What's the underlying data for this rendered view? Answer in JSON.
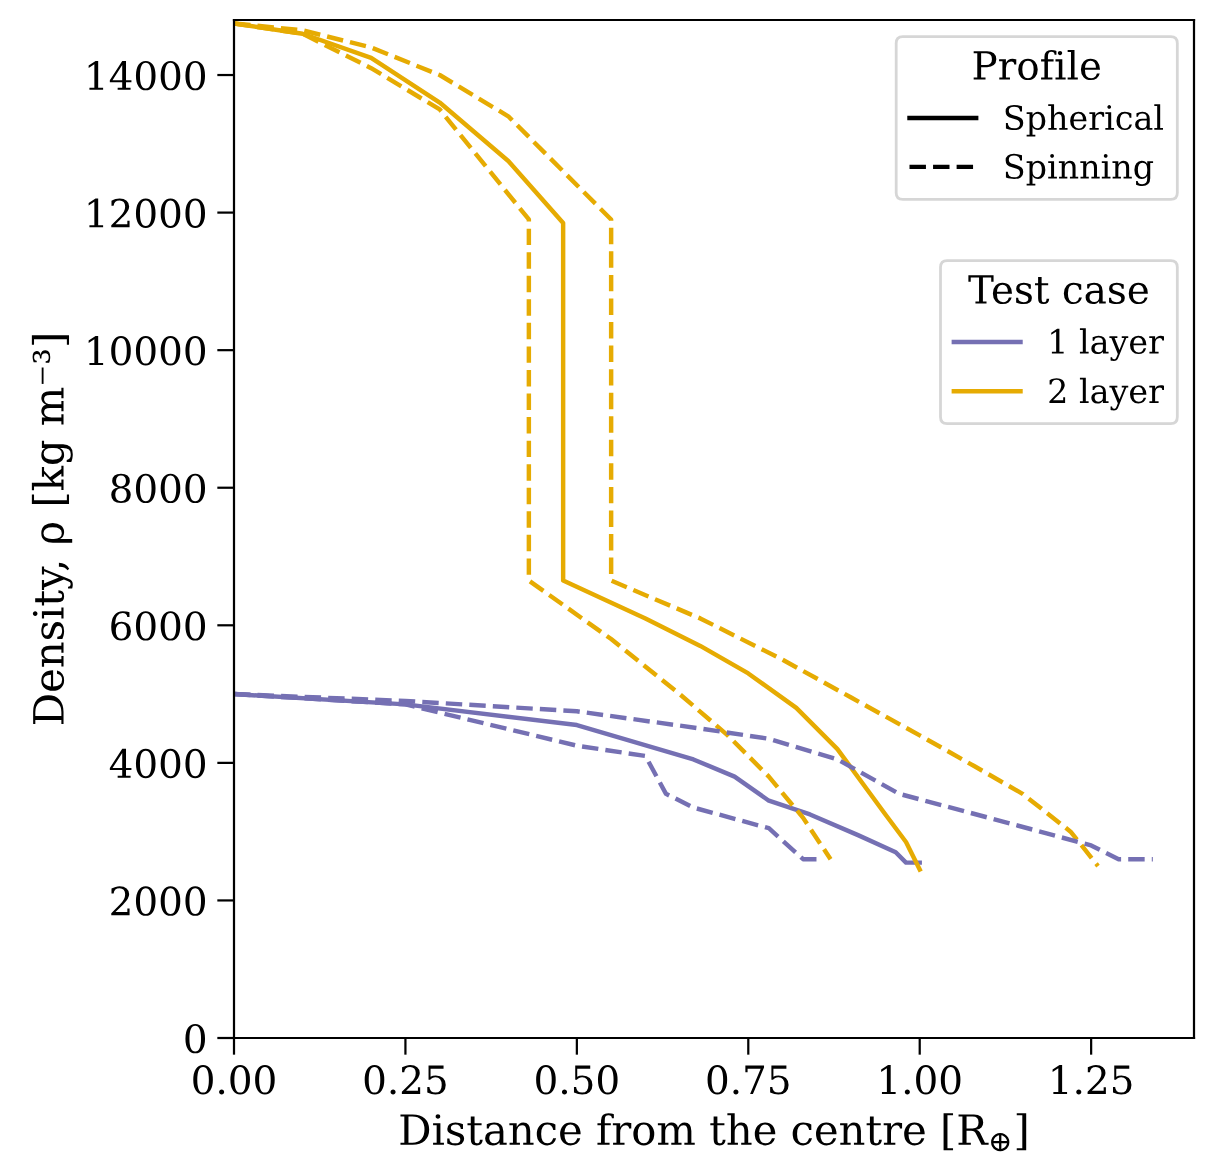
{
  "chart_data": {
    "type": "line",
    "xlabel": "Distance from the centre [R$_{⊕}$]",
    "ylabel": "Density, ρ [kg m⁻³]",
    "xlim": [
      0,
      1.4
    ],
    "xticks": [
      {
        "value": 0,
        "label": "0.00"
      },
      0.25,
      {
        "value": 0.5,
        "label": "0.50"
      },
      0.75,
      {
        "value": 1,
        "label": "1.00"
      },
      1.25
    ],
    "ylim": [
      0,
      14800
    ],
    "yticks": [
      0,
      2000,
      4000,
      6000,
      8000,
      10000,
      12000,
      14000
    ],
    "grid": false,
    "legend": "top right",
    "legend_title": "Test case",
    "annotations": [
      "Profile",
      "Spherical",
      "Spinning"
    ],
    "series": [
      {
        "name": "1 layer",
        "color": "#7570b3",
        "line_style": "solid",
        "x": [
          0,
          0.25,
          0.5,
          0.67,
          0.73,
          0.78,
          0.84,
          0.91,
          0.965,
          0.98,
          1.0
        ],
        "values": [
          5000,
          4850,
          4550,
          4050,
          3800,
          3450,
          3250,
          2950,
          2700,
          2550,
          2550
        ]
      },
      {
        "name": "2 layer",
        "color": "#e6ab02",
        "line_style": "solid",
        "x": [
          0,
          0.1,
          0.2,
          0.3,
          0.4,
          0.48,
          0.48,
          0.6,
          0.68,
          0.75,
          0.82,
          0.88,
          0.95,
          0.98,
          1.0
        ],
        "values": [
          14750,
          14600,
          14250,
          13600,
          12750,
          11850,
          6650,
          6100,
          5700,
          5300,
          4800,
          4200,
          3250,
          2850,
          2450
        ]
      },
      {
        "color": "#e6ab02",
        "line_style": "dashed",
        "x": [
          0,
          0.1,
          0.2,
          0.3,
          0.43,
          0.43,
          0.55,
          0.65,
          0.72,
          0.78,
          0.83,
          0.87
        ],
        "values": [
          14750,
          14600,
          14100,
          13500,
          11900,
          6650,
          5800,
          5000,
          4400,
          3800,
          3200,
          2600
        ]
      },
      {
        "color": "#e6ab02",
        "line_style": "dashed",
        "x": [
          0,
          0.1,
          0.2,
          0.3,
          0.4,
          0.55,
          0.55,
          0.68,
          0.8,
          0.9,
          1.0,
          1.08,
          1.15,
          1.22,
          1.26
        ],
        "values": [
          14750,
          14650,
          14400,
          14000,
          13400,
          11900,
          6650,
          6100,
          5500,
          4950,
          4400,
          3950,
          3550,
          3000,
          2500
        ]
      },
      {
        "color": "#7570b3",
        "line_style": "dashed",
        "x": [
          0,
          0.25,
          0.5,
          0.6,
          0.63,
          0.67,
          0.78,
          0.83,
          0.85
        ],
        "values": [
          5000,
          4850,
          4250,
          4100,
          3550,
          3350,
          3050,
          2600,
          2600
        ]
      },
      {
        "color": "#7570b3",
        "line_style": "dashed",
        "x": [
          0,
          0.25,
          0.5,
          0.68,
          0.78,
          0.88,
          0.97,
          1.12,
          1.25,
          1.29,
          1.34
        ],
        "values": [
          5000,
          4900,
          4750,
          4500,
          4350,
          4050,
          3550,
          3150,
          2800,
          2600,
          2600
        ]
      }
    ]
  }
}
